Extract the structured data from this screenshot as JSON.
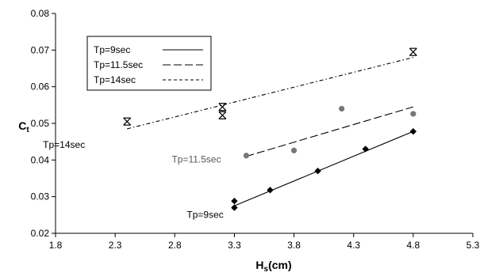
{
  "chart_data": {
    "type": "scatter",
    "xlabel": {
      "main": "H",
      "sub": "s",
      "rest": "(cm)"
    },
    "ylabel": {
      "main": "C",
      "sub": "t"
    },
    "xlim": [
      1.8,
      5.3
    ],
    "ylim": [
      0.02,
      0.08
    ],
    "xticks": [
      "1.8",
      "2.3",
      "2.8",
      "3.3",
      "3.8",
      "4.3",
      "4.8",
      "5.3"
    ],
    "yticks": [
      "0.02",
      "0.03",
      "0.04",
      "0.05",
      "0.06",
      "0.07",
      "0.08"
    ],
    "grid": false,
    "legend_position": "top-left",
    "legend": [
      "Tp=9sec",
      "Tp=11.5sec",
      "Tp=14sec"
    ],
    "series": [
      {
        "name": "Tp=9sec",
        "marker": "diamond",
        "line_style": "solid",
        "color": "#000000",
        "points": [
          [
            3.3,
            0.027
          ],
          [
            3.3,
            0.0288
          ],
          [
            3.6,
            0.0318
          ],
          [
            4.0,
            0.037
          ],
          [
            4.4,
            0.043
          ],
          [
            4.8,
            0.0478
          ]
        ],
        "fit": [
          [
            3.3,
            0.0275
          ],
          [
            4.8,
            0.0478
          ]
        ],
        "annotation": "Tp=9sec",
        "annotation_color": "#000000"
      },
      {
        "name": "Tp=11.5sec",
        "marker": "circle",
        "line_style": "long-dash",
        "color": "#777777",
        "points": [
          [
            3.4,
            0.0412
          ],
          [
            3.8,
            0.0426
          ],
          [
            4.2,
            0.054
          ],
          [
            4.8,
            0.0526
          ]
        ],
        "fit": [
          [
            3.4,
            0.041
          ],
          [
            4.8,
            0.0545
          ]
        ],
        "annotation": "Tp=11.5sec",
        "annotation_color": "#555555"
      },
      {
        "name": "Tp=14sec",
        "marker": "asterisk",
        "line_style": "dash-dot",
        "color": "#000000",
        "points": [
          [
            2.4,
            0.0505
          ],
          [
            3.2,
            0.0545
          ],
          [
            3.2,
            0.0522
          ],
          [
            4.8,
            0.0695
          ]
        ],
        "fit": [
          [
            2.4,
            0.0485
          ],
          [
            4.8,
            0.068
          ]
        ],
        "annotation": "Tp=14sec",
        "annotation_color": "#000000"
      }
    ]
  }
}
